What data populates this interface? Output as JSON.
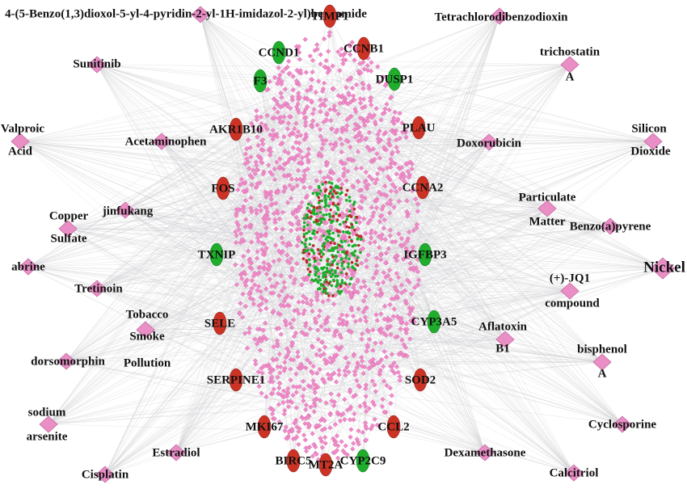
{
  "chemicals": [
    {
      "label": "4-(5-Benzo(1,3)dioxol-5-yl-4-pyridin-2-yl-1H-imidazol-2-yl)benzamide"
    },
    {
      "label": "Tetrachlorodibenzodioxin"
    },
    {
      "label": [
        "trichostatin",
        "A"
      ]
    },
    {
      "label": "Sunitinib"
    },
    {
      "label": [
        "Valproic",
        "Acid"
      ]
    },
    {
      "label": [
        "Silicon",
        "Dioxide"
      ]
    },
    {
      "label": "Acetaminophen"
    },
    {
      "label": "Doxorubicin"
    },
    {
      "label": [
        "Particulate",
        "Matter"
      ]
    },
    {
      "label": "Benzo(a)pyrene"
    },
    {
      "label": "jinfukang"
    },
    {
      "label": [
        "Copper",
        "Sulfate"
      ]
    },
    {
      "label": "abrine"
    },
    {
      "label": "Nickel"
    },
    {
      "label": [
        "(+)-JQ1",
        "compound"
      ]
    },
    {
      "label": "Tretinoin"
    },
    {
      "label": [
        "Tobacco",
        "Smoke",
        "Pollution"
      ]
    },
    {
      "label": [
        "Aflatoxin",
        "B1"
      ]
    },
    {
      "label": [
        "bisphenol",
        "A"
      ]
    },
    {
      "label": "dorsomorphin"
    },
    {
      "label": [
        "sodium",
        "arsenite"
      ]
    },
    {
      "label": "Cyclosporine"
    },
    {
      "label": "Estradiol"
    },
    {
      "label": "Dexamethasone"
    },
    {
      "label": "Cisplatin"
    },
    {
      "label": "Calcitriol"
    }
  ],
  "genes": [
    {
      "label": "CCND1"
    },
    {
      "label": "TIMP1"
    },
    {
      "label": "CCNB1"
    },
    {
      "label": "F3"
    },
    {
      "label": "DUSP1"
    },
    {
      "label": "AKR1B10"
    },
    {
      "label": "PLAU"
    },
    {
      "label": "FOS"
    },
    {
      "label": "CCNA2"
    },
    {
      "label": "TXNIP"
    },
    {
      "label": "IGFBP3"
    },
    {
      "label": "SELE"
    },
    {
      "label": "CYP3A5"
    },
    {
      "label": "SERPINE1"
    },
    {
      "label": "SOD2"
    },
    {
      "label": "MKI67"
    },
    {
      "label": "CCL2"
    },
    {
      "label": "BIRC5"
    },
    {
      "label": "MT2A"
    },
    {
      "label": "CYP2C9"
    }
  ]
}
